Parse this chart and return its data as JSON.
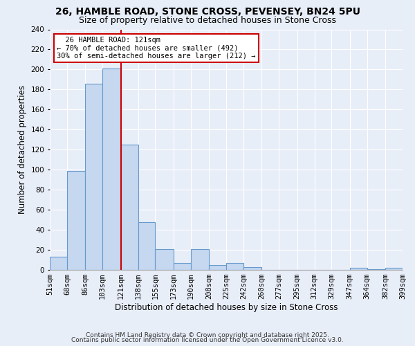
{
  "title": "26, HAMBLE ROAD, STONE CROSS, PEVENSEY, BN24 5PU",
  "subtitle": "Size of property relative to detached houses in Stone Cross",
  "xlabel": "Distribution of detached houses by size in Stone Cross",
  "ylabel": "Number of detached properties",
  "bar_edges": [
    51,
    68,
    86,
    103,
    121,
    138,
    155,
    173,
    190,
    208,
    225,
    242,
    260,
    277,
    295,
    312,
    329,
    347,
    364,
    382,
    399
  ],
  "bar_heights": [
    13,
    99,
    186,
    201,
    125,
    48,
    21,
    7,
    21,
    5,
    7,
    3,
    0,
    0,
    0,
    0,
    0,
    2,
    1,
    2
  ],
  "bar_color": "#c5d8f0",
  "bar_edge_color": "#6699cc",
  "property_line_x": 121,
  "property_line_color": "#cc0000",
  "annotation_title": "26 HAMBLE ROAD: 121sqm",
  "annotation_line1": "← 70% of detached houses are smaller (492)",
  "annotation_line2": "30% of semi-detached houses are larger (212) →",
  "annotation_box_color": "#ffffff",
  "annotation_box_edge_color": "#cc0000",
  "ylim": [
    0,
    240
  ],
  "yticks": [
    0,
    20,
    40,
    60,
    80,
    100,
    120,
    140,
    160,
    180,
    200,
    220,
    240
  ],
  "tick_labels": [
    "51sqm",
    "68sqm",
    "86sqm",
    "103sqm",
    "121sqm",
    "138sqm",
    "155sqm",
    "173sqm",
    "190sqm",
    "208sqm",
    "225sqm",
    "242sqm",
    "260sqm",
    "277sqm",
    "295sqm",
    "312sqm",
    "329sqm",
    "347sqm",
    "364sqm",
    "382sqm",
    "399sqm"
  ],
  "background_color": "#e8eef8",
  "grid_color": "#ffffff",
  "footer1": "Contains HM Land Registry data © Crown copyright and database right 2025.",
  "footer2": "Contains public sector information licensed under the Open Government Licence v3.0.",
  "title_fontsize": 10,
  "subtitle_fontsize": 9,
  "axis_label_fontsize": 8.5,
  "tick_fontsize": 7.5,
  "footer_fontsize": 6.5
}
